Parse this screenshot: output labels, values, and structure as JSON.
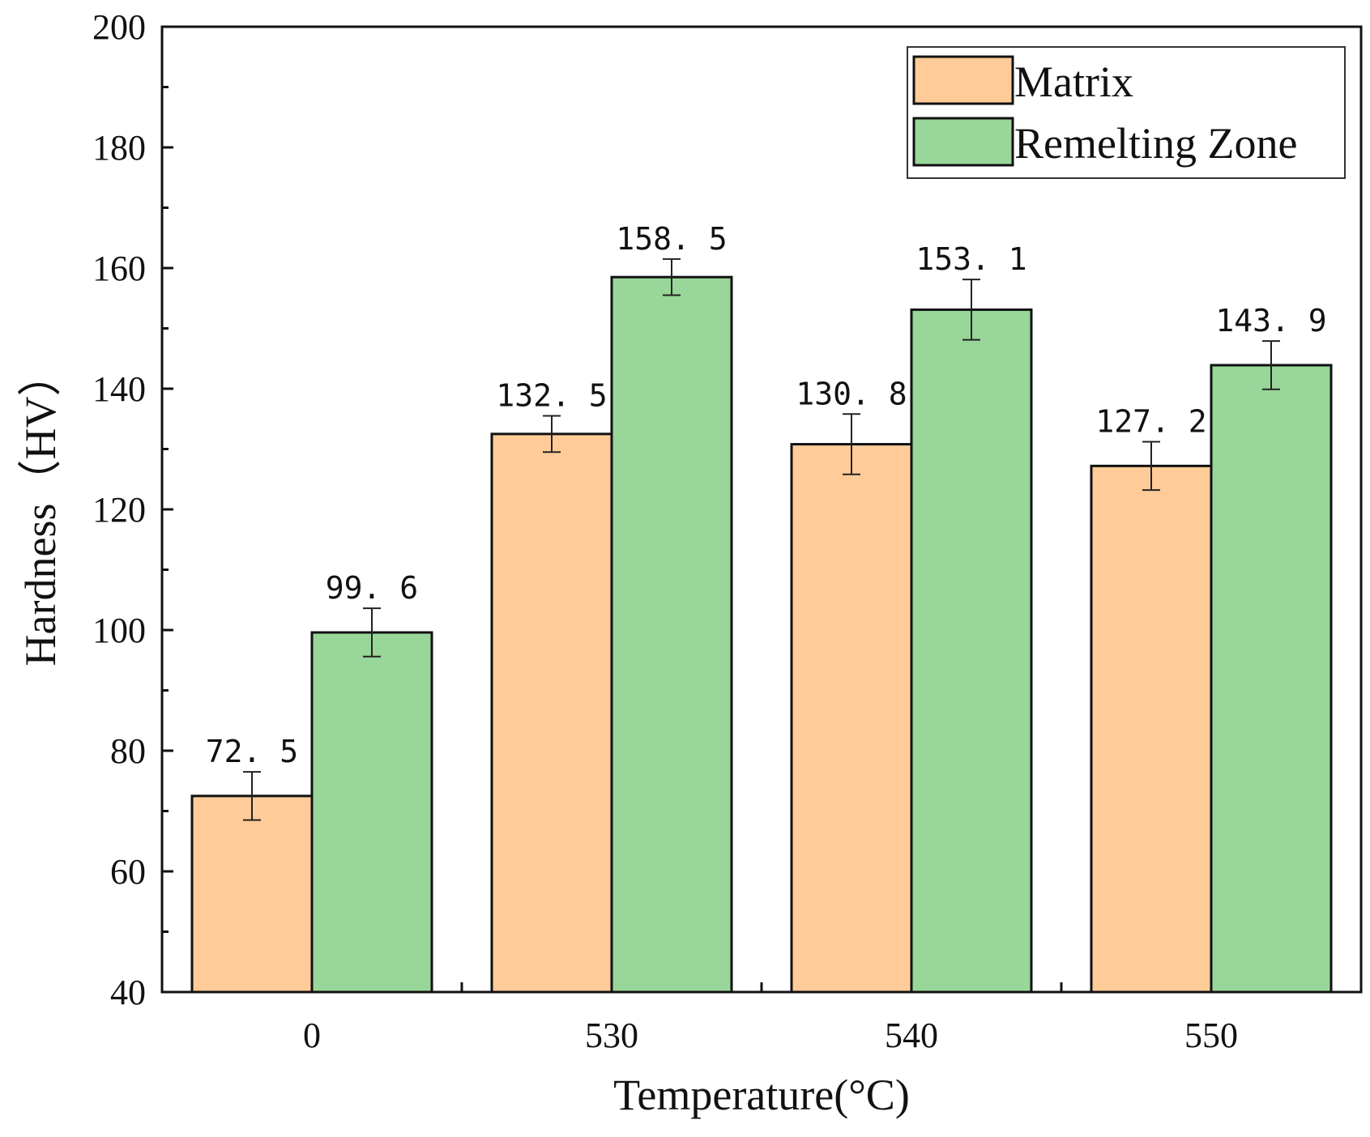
{
  "chart_data": {
    "type": "bar",
    "title": "",
    "xlabel": "Temperature(°C)",
    "ylabel": "Hardness（HV）",
    "categories": [
      "0",
      "530",
      "540",
      "550"
    ],
    "ylim": [
      40,
      200
    ],
    "yticks": [
      40,
      60,
      80,
      100,
      120,
      140,
      160,
      180,
      200
    ],
    "legend_position": "top-right",
    "series": [
      {
        "name": "Matrix",
        "color": "#FFCC99",
        "values": [
          72.5,
          132.5,
          130.8,
          127.2
        ],
        "errors": [
          4.0,
          3.0,
          5.0,
          4.0
        ],
        "labels": [
          "72. 5",
          "132. 5",
          "130. 8",
          "127. 2"
        ]
      },
      {
        "name": "Remelting Zone",
        "color": "#99D699",
        "values": [
          99.6,
          158.5,
          153.1,
          143.9
        ],
        "errors": [
          4.0,
          3.0,
          5.0,
          4.0
        ],
        "labels": [
          "99. 6",
          "158. 5",
          "153. 1",
          "143. 9"
        ]
      }
    ]
  }
}
